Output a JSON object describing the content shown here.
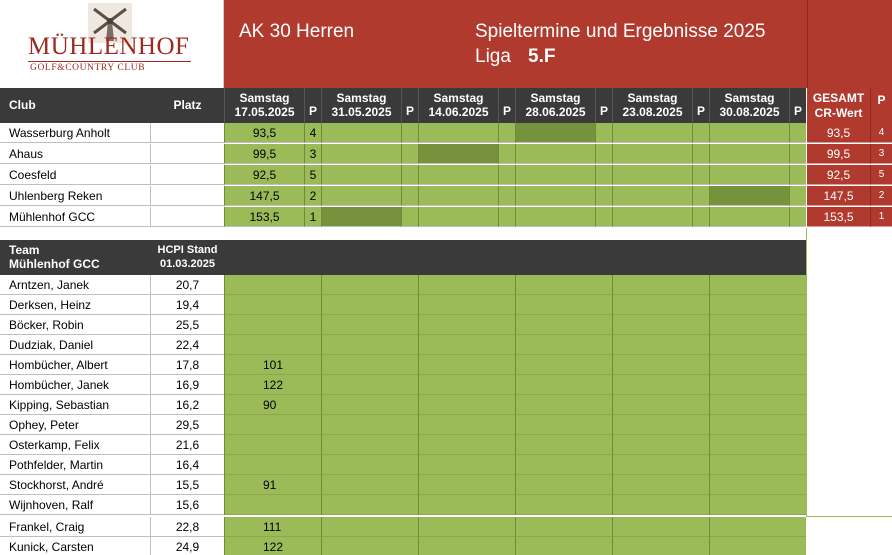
{
  "header": {
    "logo_main": "MÜHLENHOF",
    "logo_sub": "GOLF&COUNTRY CLUB",
    "title": "AK 30 Herren",
    "heading": "Spieltermine und Ergebnisse 2025",
    "liga_label": "Liga",
    "liga_value": "5.F"
  },
  "columns": {
    "club": "Club",
    "platz": "Platz",
    "p": "P",
    "gesamt_line1": "GESAMT",
    "gesamt_line2": "CR-Wert",
    "dates": [
      {
        "day": "Samstag",
        "date": "17.05.2025"
      },
      {
        "day": "Samstag",
        "date": "31.05.2025"
      },
      {
        "day": "Samstag",
        "date": "14.06.2025"
      },
      {
        "day": "Samstag",
        "date": "28.06.2025"
      },
      {
        "day": "Samstag",
        "date": "23.08.2025"
      },
      {
        "day": "Samstag",
        "date": "30.08.2025"
      }
    ]
  },
  "clubs": [
    {
      "name": "Wasserburg Anholt",
      "value": "93,5",
      "p": "4",
      "total": "93,5",
      "total_p": "4"
    },
    {
      "name": "Ahaus",
      "value": "99,5",
      "p": "3",
      "total": "99,5",
      "total_p": "3"
    },
    {
      "name": "Coesfeld",
      "value": "92,5",
      "p": "5",
      "total": "92,5",
      "total_p": "5"
    },
    {
      "name": "Uhlenberg Reken",
      "value": "147,5",
      "p": "2",
      "total": "147,5",
      "total_p": "2"
    },
    {
      "name": "Mühlenhof GCC",
      "value": "153,5",
      "p": "1",
      "total": "153,5",
      "total_p": "1"
    }
  ],
  "team_header": {
    "team_line1": "Team",
    "team_line2": "Mühlenhof GCC",
    "hcpi_line1": "HCPI Stand",
    "hcpi_line2": "01.03.2025"
  },
  "players": [
    {
      "name": "Arntzen, Janek",
      "hcpi": "20,7",
      "score": ""
    },
    {
      "name": "Derksen, Heinz",
      "hcpi": "19,4",
      "score": ""
    },
    {
      "name": "Böcker, Robin",
      "hcpi": "25,5",
      "score": ""
    },
    {
      "name": "Dudziak, Daniel",
      "hcpi": "22,4",
      "score": ""
    },
    {
      "name": "Hombücher, Albert",
      "hcpi": "17,8",
      "score": "101"
    },
    {
      "name": "Hombücher, Janek",
      "hcpi": "16,9",
      "score": "122"
    },
    {
      "name": "Kipping, Sebastian",
      "hcpi": "16,2",
      "score": "90"
    },
    {
      "name": "Ophey, Peter",
      "hcpi": "29,5",
      "score": ""
    },
    {
      "name": "Osterkamp, Felix",
      "hcpi": "21,6",
      "score": ""
    },
    {
      "name": "Pothfelder, Martin",
      "hcpi": "16,4",
      "score": ""
    },
    {
      "name": "Stockhorst, André",
      "hcpi": "15,5",
      "score": "91"
    },
    {
      "name": "Wijnhoven, Ralf",
      "hcpi": "15,6",
      "score": ""
    },
    {
      "name": "Frankel, Craig",
      "hcpi": "22,8",
      "score": "111"
    },
    {
      "name": "Kunick, Carsten",
      "hcpi": "24,9",
      "score": "122"
    }
  ],
  "colors": {
    "banner_red": "#b03a2e",
    "header_dark": "#3a3a3a",
    "cell_green": "#9bbb59",
    "cell_dark_green": "#76923c"
  },
  "icons": [
    "windmill-logo-icon"
  ]
}
